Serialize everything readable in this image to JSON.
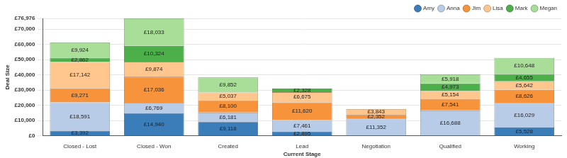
{
  "chart_data": {
    "type": "bar",
    "stacked": true,
    "grid": true,
    "legend": "top-right",
    "data_labels": true,
    "x_label": "Current Stage",
    "y_label": "Deal Size",
    "categories": [
      "Closed - Lost",
      "Closed - Won",
      "Created",
      "Lead",
      "Negotiation",
      "Qualified",
      "Working"
    ],
    "ylim": [
      0,
      76976
    ],
    "yticks": [
      {
        "value": 0,
        "label": "£0"
      },
      {
        "value": 10000,
        "label": "£10,000"
      },
      {
        "value": 20000,
        "label": "£20,000"
      },
      {
        "value": 30000,
        "label": "£30,000"
      },
      {
        "value": 40000,
        "label": "£40,000"
      },
      {
        "value": 50000,
        "label": "£50,000"
      },
      {
        "value": 60000,
        "label": "£60,000"
      },
      {
        "value": 70000,
        "label": "£70,000"
      },
      {
        "value": 76976,
        "label": "£76,976"
      }
    ],
    "series": [
      {
        "name": "Amy",
        "color": "#3b7db8",
        "values": [
          3392,
          14940,
          9118,
          2895,
          null,
          null,
          5528
        ],
        "value_labels": [
          "£3,392",
          "£14,940",
          "£9,118",
          "£2,895",
          null,
          null,
          "£5,528"
        ]
      },
      {
        "name": "Anna",
        "color": "#b8cce8",
        "values": [
          18591,
          6769,
          6181,
          7461,
          11352,
          16688,
          16029
        ],
        "value_labels": [
          "£18,591",
          "£6,769",
          "£6,181",
          "£7,461",
          "£11,352",
          "£16,688",
          "£16,029"
        ]
      },
      {
        "name": "Jim",
        "color": "#f7933b",
        "values": [
          9271,
          17036,
          8100,
          11620,
          2352,
          7541,
          8626
        ],
        "value_labels": [
          "£9,271",
          "£17,036",
          "£8,100",
          "£11,620",
          "£2,352",
          "£7,541",
          "£8,626"
        ]
      },
      {
        "name": "Lisa",
        "color": "#ffc68e",
        "values": [
          17142,
          9874,
          5037,
          6675,
          3843,
          5154,
          5642
        ],
        "value_labels": [
          "£17,142",
          "£9,874",
          "£5,037",
          "£6,675",
          "£3,843",
          "£5,154",
          "£5,642"
        ]
      },
      {
        "name": "Mark",
        "color": "#4daf4a",
        "values": [
          2862,
          10324,
          null,
          2328,
          null,
          4973,
          4655
        ],
        "value_labels": [
          "£2,862",
          "£10,324",
          null,
          "£2,328",
          null,
          "£4,973",
          "£4,655"
        ]
      },
      {
        "name": "Megan",
        "color": "#a8de98",
        "values": [
          9924,
          18033,
          9852,
          null,
          null,
          5918,
          10648
        ],
        "value_labels": [
          "£9,924",
          "£18,033",
          "£9,852",
          null,
          null,
          "£5,918",
          "£10,648"
        ]
      }
    ]
  }
}
